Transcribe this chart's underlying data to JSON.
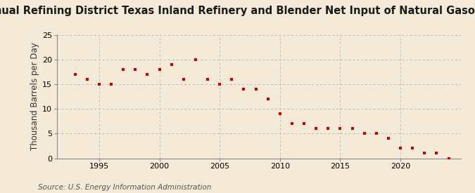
{
  "title": "Annual Refining District Texas Inland Refinery and Blender Net Input of Natural Gasoline",
  "ylabel": "Thousand Barrels per Day",
  "source": "Source: U.S. Energy Information Administration",
  "background_color": "#f5ead8",
  "plot_bg_color": "#f5ead8",
  "marker_color": "#cc0000",
  "grid_color": "#bbbbbb",
  "spine_color": "#888888",
  "years": [
    1993,
    1994,
    1995,
    1996,
    1997,
    1998,
    1999,
    2000,
    2001,
    2002,
    2003,
    2004,
    2005,
    2006,
    2007,
    2008,
    2009,
    2010,
    2011,
    2012,
    2013,
    2014,
    2015,
    2016,
    2017,
    2018,
    2019,
    2020,
    2021,
    2022,
    2023,
    2024
  ],
  "values": [
    17.0,
    16.0,
    15.0,
    15.0,
    18.0,
    18.0,
    17.0,
    18.0,
    19.0,
    16.0,
    20.0,
    16.0,
    15.0,
    16.0,
    14.0,
    14.0,
    12.0,
    9.0,
    7.0,
    7.0,
    6.0,
    6.0,
    6.0,
    6.0,
    5.0,
    5.0,
    4.0,
    2.0,
    2.0,
    1.0,
    1.0,
    0.0
  ],
  "xlim": [
    1991.5,
    2025.0
  ],
  "ylim": [
    0,
    25
  ],
  "yticks": [
    0,
    5,
    10,
    15,
    20,
    25
  ],
  "xticks": [
    1995,
    2000,
    2005,
    2010,
    2015,
    2020
  ],
  "title_fontsize": 10.5,
  "ylabel_fontsize": 8.5,
  "tick_fontsize": 8,
  "source_fontsize": 7.5
}
